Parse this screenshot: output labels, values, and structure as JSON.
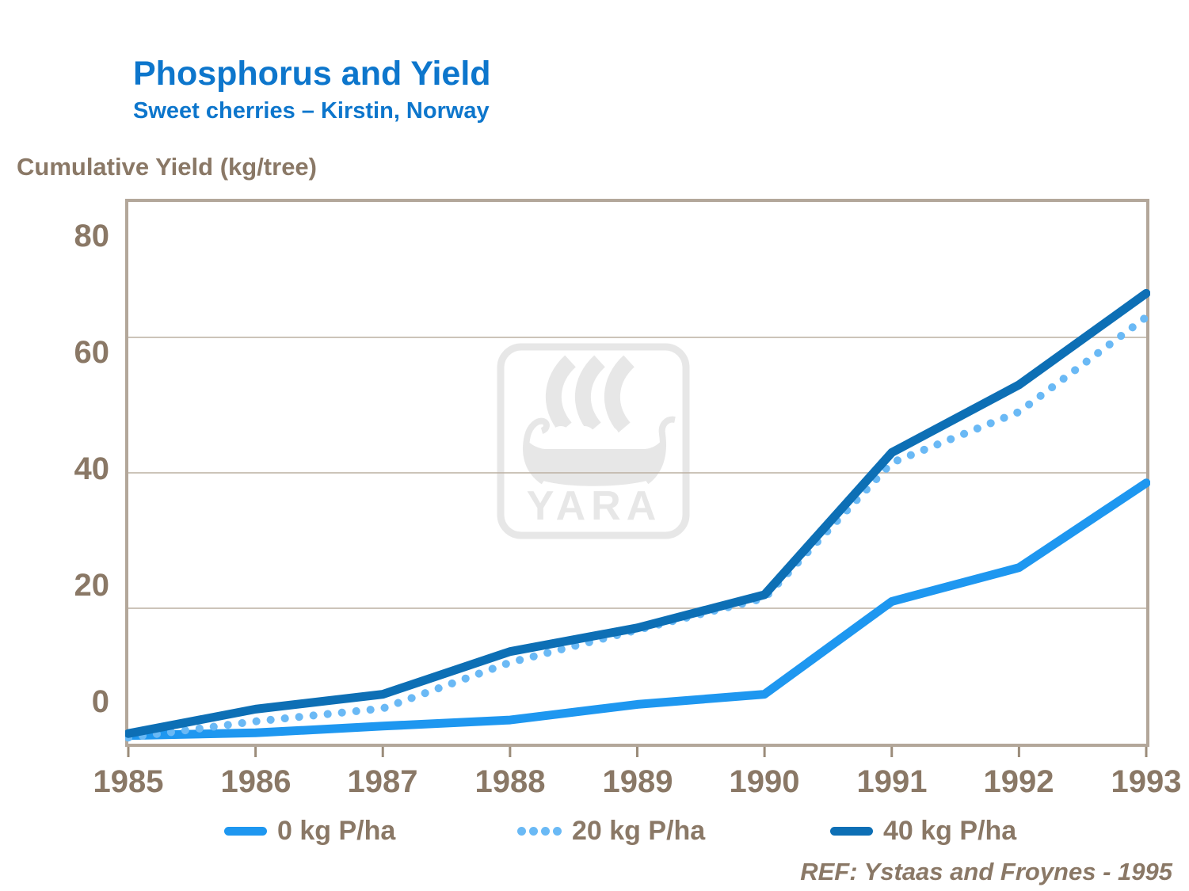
{
  "slide": {
    "title": "Phosphorus and Yield",
    "subtitle": "Sweet cherries – Kirstin, Norway",
    "y_axis_title": "Cumulative Yield (kg/tree)",
    "reference": "REF: Ystaas and Froynes - 1995",
    "watermark_text": "YARA"
  },
  "colors": {
    "title_blue": "#0d76cc",
    "axis_text": "#8a7866",
    "plot_border": "#b3a79a",
    "gridline": "#bcb0a2",
    "tick": "#9b8c7a",
    "watermark_gray": "#e7e7e7",
    "background": "#ffffff"
  },
  "chart_data": {
    "type": "line",
    "title": "Phosphorus and Yield",
    "subtitle": "Sweet cherries – Kirstin, Norway",
    "xlabel": "",
    "ylabel": "Cumulative Yield (kg/tree)",
    "x": [
      1985,
      1986,
      1987,
      1988,
      1989,
      1990,
      1991,
      1992,
      1993
    ],
    "ylim": [
      0,
      80
    ],
    "yticks": [
      80,
      60,
      40,
      20,
      0
    ],
    "grid": true,
    "legend_position": "bottom",
    "series": [
      {
        "name": "0 kg P/ha",
        "line_style": "solid",
        "color": "#1e97f0",
        "values": [
          1.2,
          1.6,
          2.6,
          3.5,
          5.8,
          7.3,
          21.0,
          26.0,
          38.5
        ]
      },
      {
        "name": "20 kg P/ha",
        "line_style": "dotted",
        "color": "#6ab9f5",
        "values": [
          0.9,
          3.3,
          5.2,
          12.0,
          16.8,
          21.5,
          41.5,
          49.0,
          63.0
        ]
      },
      {
        "name": "40 kg P/ha",
        "line_style": "solid",
        "color": "#0d6fb5",
        "values": [
          1.5,
          5.1,
          7.3,
          13.6,
          17.1,
          22.0,
          43.0,
          53.0,
          66.5
        ]
      }
    ]
  }
}
